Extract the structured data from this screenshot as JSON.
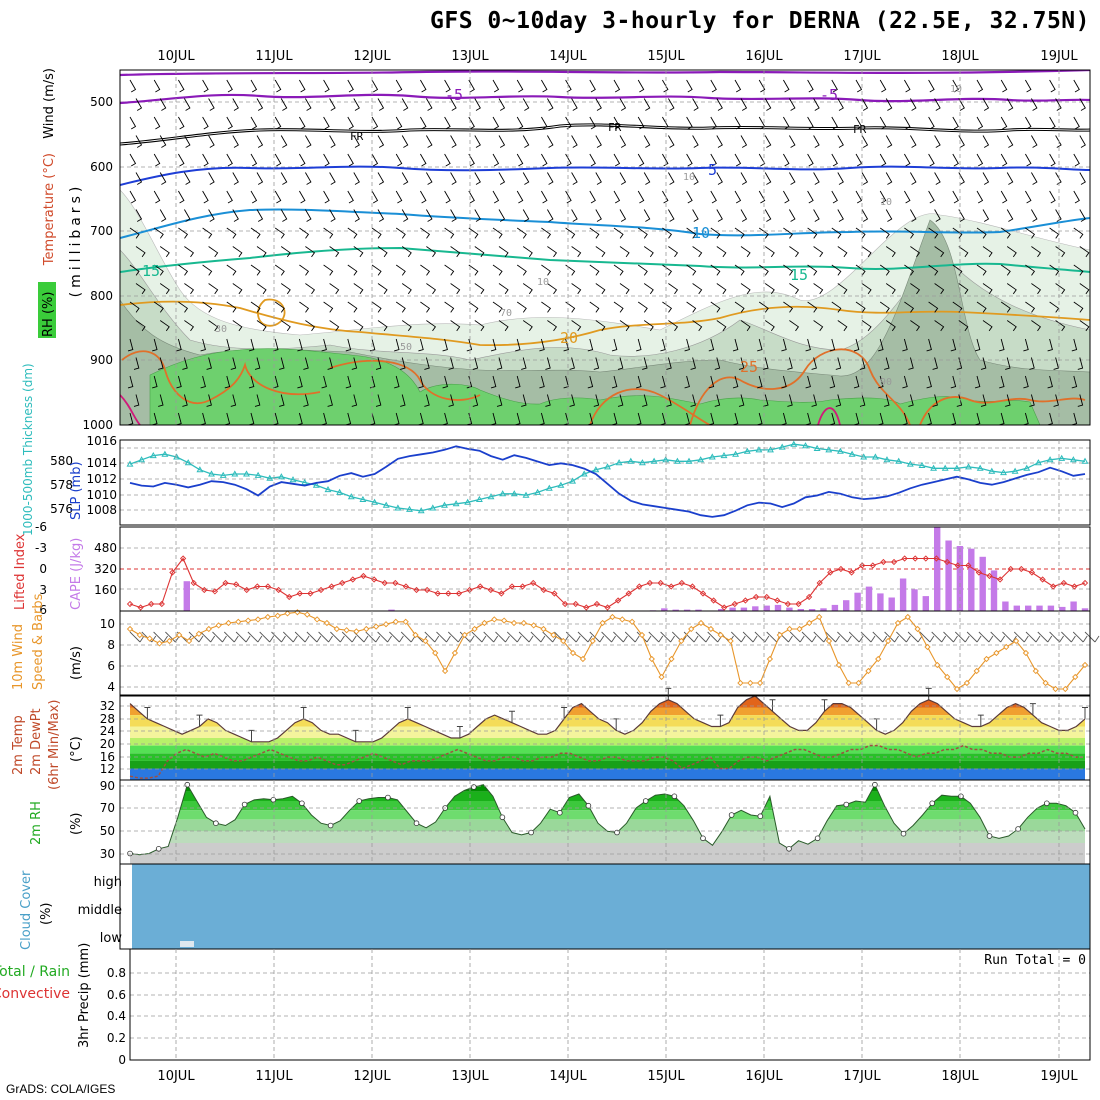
{
  "title": "GFS 0~10day 3-hourly for DERNA (22.5E, 32.75N)",
  "footer": "GrADS: COLA/IGES",
  "date_labels": [
    "10JUL",
    "11JUL",
    "12JUL",
    "13JUL",
    "14JUL",
    "15JUL",
    "16JUL",
    "17JUL",
    "18JUL",
    "19JUL"
  ],
  "colors": {
    "frame": "#000000",
    "grid": "#9a9a9a",
    "t_purple": "#8a1ab8",
    "t_black": "#000000",
    "t_blue": "#1e3ed6",
    "t_cyan": "#1a8fd6",
    "t_green": "#18b890",
    "t_orange": "#e09a20",
    "t_dorange": "#e0702a",
    "t_magenta": "#d01a7a",
    "rh_l1": "#e6f2e6",
    "rh_l2": "#c7dcc7",
    "rh_l3": "#a5bda5",
    "rh_high": "#6ed06e",
    "thick": "#2ebcbc",
    "slp": "#1a3fcc",
    "li": "#dd3333",
    "cape": "#c47ae8",
    "wind": "#e8962a",
    "cloud": "#6baed6",
    "temp_band": [
      "#e2641a",
      "#f0a030",
      "#f4dc58",
      "#f4f49c",
      "#b8f06a",
      "#55e055",
      "#28c028",
      "#18a018",
      "#2a78e0"
    ],
    "rh_band": [
      "#008f00",
      "#1ab01a",
      "#3cc83c",
      "#6edc6e",
      "#9ad89a",
      "#bcdcbc",
      "#cccccc"
    ]
  },
  "panels": {
    "upper": {
      "y_label": "(millibars)",
      "side_labels": [
        "Wind (m/s)",
        "Temperature (°C)",
        "RH (%)"
      ],
      "y_ticks": [
        "500",
        "600",
        "700",
        "800",
        "900",
        "1000"
      ],
      "contour_labels": {
        "m5_a": "-5",
        "m5_b": "-5",
        "fr_a": "FR",
        "fr_b": "FR",
        "fr_c": "FR",
        "p5": "5",
        "p10": "10",
        "p15_a": "15",
        "p15_b": "15",
        "p20": "20",
        "p25": "25",
        "rh10_a": "10",
        "rh10_b": "10",
        "rh10_c": "10",
        "rh10_d": "10",
        "rh30": "30",
        "rh50": "50",
        "rh70": "70",
        "rh90": "90"
      }
    },
    "thickness": {
      "left_label": "1000-500mb Thickness (dm)",
      "right_label": "SLP (mb)",
      "left_ticks": [
        "580",
        "578",
        "576"
      ],
      "right_ticks": [
        "1016",
        "1014",
        "1012",
        "1010",
        "1008"
      ]
    },
    "li_cape": {
      "left_label": "Lifted Index",
      "right_label": "CAPE (J/kg)",
      "left_ticks": [
        "-6",
        "-3",
        "0",
        "3",
        "6"
      ],
      "right_ticks": [
        "480",
        "320",
        "160"
      ]
    },
    "wind": {
      "left_label": "10m Wind",
      "mid_label": "Speed & Barbs",
      "unit": "(m/s)",
      "ticks": [
        "10",
        "8",
        "6",
        "4"
      ]
    },
    "temp": {
      "labels": [
        "2m Temp",
        "2m DewPt",
        "(6hr Min/Max)"
      ],
      "unit": "(°C)",
      "ticks": [
        "32",
        "28",
        "24",
        "20",
        "16",
        "12"
      ]
    },
    "rh": {
      "label": "2m RH",
      "unit": "(%)",
      "ticks": [
        "90",
        "70",
        "50",
        "30"
      ]
    },
    "cloud": {
      "label": "Cloud Cover",
      "unit": "(%)",
      "levels": [
        "high",
        "middle",
        "low"
      ]
    },
    "precip": {
      "label_total": "Total / Rain",
      "label_conv": "Convective",
      "unit": "3hr Precip (mm)",
      "ticks": [
        "0.8",
        "0.6",
        "0.4",
        "0.2",
        "0"
      ],
      "run_total": "Run Total = 0"
    }
  },
  "chart_data": [
    {
      "type": "line",
      "title": "1000-500mb Thickness / SLP",
      "x_step_hours": 3,
      "series": [
        {
          "name": "1000-500mb Thickness (dm)",
          "axis": "left",
          "ylim": [
            575,
            581
          ],
          "values": [
            579.3,
            579.6,
            579.9,
            580.0,
            579.8,
            579.4,
            578.9,
            578.6,
            578.5,
            578.6,
            578.6,
            578.5,
            578.3,
            578.4,
            578.2,
            578.0,
            577.8,
            577.5,
            577.3,
            577.0,
            576.8,
            576.6,
            576.4,
            576.2,
            576.1,
            576.0,
            576.2,
            576.4,
            576.5,
            576.6,
            576.8,
            577.0,
            577.2,
            577.2,
            577.1,
            577.3,
            577.6,
            577.8,
            578.1,
            578.6,
            578.9,
            579.1,
            579.4,
            579.5,
            579.4,
            579.5,
            579.6,
            579.5,
            579.5,
            579.6,
            579.8,
            579.9,
            580.0,
            580.2,
            580.3,
            580.3,
            580.5,
            580.7,
            580.6,
            580.4,
            580.3,
            580.2,
            580.0,
            579.8,
            579.8,
            579.6,
            579.5,
            579.3,
            579.2,
            579.0,
            579.0,
            579.0,
            579.1,
            579.0,
            578.8,
            578.7,
            578.8,
            579.0,
            579.4,
            579.6,
            579.7,
            579.6,
            579.5
          ]
        },
        {
          "name": "SLP (mb)",
          "axis": "right",
          "ylim": [
            1006.5,
            1016
          ],
          "values": [
            1011.2,
            1010.9,
            1010.8,
            1011.2,
            1011.0,
            1010.7,
            1011.0,
            1011.4,
            1011.3,
            1011.0,
            1010.5,
            1009.8,
            1010.8,
            1011.3,
            1011.1,
            1010.9,
            1011.2,
            1011.4,
            1012.0,
            1012.3,
            1011.9,
            1012.2,
            1013.0,
            1013.9,
            1014.2,
            1014.4,
            1014.6,
            1014.9,
            1015.3,
            1015.0,
            1014.8,
            1014.2,
            1013.8,
            1014.3,
            1014.0,
            1013.6,
            1013.2,
            1013.4,
            1013.2,
            1012.8,
            1012.2,
            1011.1,
            1010.0,
            1009.2,
            1008.8,
            1008.6,
            1008.4,
            1008.2,
            1008.0,
            1007.6,
            1007.4,
            1007.6,
            1008.1,
            1008.7,
            1009.0,
            1008.9,
            1008.5,
            1008.9,
            1009.6,
            1009.8,
            1010.2,
            1010.0,
            1009.6,
            1009.4,
            1009.5,
            1009.7,
            1010.1,
            1010.6,
            1011.0,
            1011.3,
            1011.6,
            1011.9,
            1011.6,
            1011.2,
            1011.0,
            1011.3,
            1011.7,
            1012.1,
            1012.4,
            1012.9,
            1012.5,
            1012.0,
            1012.2
          ]
        }
      ]
    },
    {
      "type": "bar",
      "title": "Lifted Index / CAPE",
      "series": [
        {
          "name": "CAPE (J/kg)",
          "axis": "right",
          "ylim": [
            0,
            620
          ],
          "values": [
            0,
            0,
            0,
            0,
            0,
            220,
            0,
            0,
            0,
            0,
            0,
            0,
            0,
            0,
            0,
            0,
            0,
            0,
            0,
            0,
            0,
            0,
            0,
            10,
            0,
            0,
            0,
            0,
            0,
            0,
            0,
            0,
            0,
            0,
            0,
            0,
            0,
            0,
            0,
            0,
            0,
            0,
            0,
            0,
            0,
            0,
            5,
            20,
            10,
            10,
            10,
            0,
            15,
            25,
            25,
            35,
            40,
            45,
            25,
            15,
            15,
            20,
            45,
            80,
            135,
            180,
            130,
            100,
            240,
            160,
            110,
            620,
            520,
            480,
            460,
            400,
            300,
            70,
            40,
            40,
            40,
            40,
            30,
            70,
            20
          ]
        },
        {
          "name": "Lifted Index",
          "axis": "left",
          "ylim": [
            6,
            -6
          ],
          "chart_type": "line",
          "values": [
            5.0,
            5.5,
            5.0,
            5.0,
            0.5,
            -1.5,
            2.0,
            3.0,
            3.2,
            2.0,
            2.2,
            3.0,
            2.5,
            2.5,
            3.0,
            4.0,
            3.5,
            3.5,
            3.0,
            2.5,
            2.0,
            1.5,
            1.0,
            1.5,
            2.0,
            2.0,
            2.5,
            3.0,
            3.0,
            3.5,
            3.5,
            3.5,
            3.0,
            2.5,
            3.0,
            3.5,
            2.5,
            2.5,
            2.0,
            3.0,
            3.5,
            5.0,
            5.0,
            5.5,
            5.0,
            5.5,
            4.5,
            3.5,
            2.5,
            2.0,
            2.0,
            2.5,
            2.0,
            2.5,
            3.5,
            4.5,
            5.5,
            5.0,
            4.5,
            4.0,
            4.0,
            4.5,
            5.0,
            5.0,
            4.0,
            2.0,
            0.5,
            0.0,
            0.5,
            -0.5,
            -0.5,
            -1.0,
            -1.0,
            -1.5,
            -1.5,
            -1.5,
            -1.5,
            -1.0,
            -0.5,
            -0.5,
            0.5,
            1.0,
            1.5,
            0.0,
            0.0,
            0.5,
            1.5,
            2.5,
            2.0,
            2.5,
            2.0
          ]
        }
      ]
    },
    {
      "type": "line",
      "title": "10m Wind Speed (m/s)",
      "ylim": [
        3.5,
        10.5
      ],
      "series": [
        {
          "name": "10m Wind Speed",
          "values": [
            9.0,
            8.5,
            8.2,
            7.8,
            8.0,
            8.5,
            8.0,
            8.6,
            9.0,
            9.3,
            9.5,
            9.6,
            9.7,
            9.8,
            10.0,
            10.1,
            10.3,
            10.4,
            10.2,
            9.8,
            9.5,
            9.0,
            8.9,
            8.8,
            9.0,
            9.2,
            9.4,
            9.6,
            9.6,
            8.5,
            8.0,
            7.0,
            5.5,
            7.0,
            8.5,
            9.0,
            9.5,
            9.8,
            9.7,
            9.5,
            9.5,
            9.3,
            9.0,
            8.5,
            8.0,
            7.0,
            6.5,
            8.0,
            9.5,
            10.0,
            9.8,
            9.6,
            8.5,
            6.5,
            5.0,
            6.5,
            8.0,
            9.0,
            9.5,
            9.0,
            8.5,
            8.0,
            4.5,
            4.5,
            4.5,
            6.5,
            8.5,
            9.0,
            9.0,
            9.5,
            10.0,
            8.0,
            6.0,
            4.5,
            4.5,
            5.5,
            6.5,
            8.0,
            9.5,
            10.0,
            9.0,
            7.5,
            6.0,
            5.0,
            4.0,
            4.5,
            5.5,
            6.5,
            7.0,
            7.5,
            8.0,
            7.0,
            5.5,
            4.5,
            4.0,
            4.0,
            5.0,
            6.0
          ]
        }
      ]
    },
    {
      "type": "area",
      "title": "2m Temp / 2m DewPt",
      "ylim": [
        11,
        33
      ],
      "series": [
        {
          "name": "2m Temp",
          "values": [
            31,
            29,
            27,
            26,
            25,
            24,
            23,
            24,
            25,
            27,
            26,
            24,
            23,
            22,
            21,
            21,
            21,
            22,
            24,
            26,
            27,
            26,
            24,
            23,
            23,
            22,
            21,
            21,
            21,
            22,
            24,
            26,
            27,
            26,
            25,
            24,
            23,
            22,
            22,
            23,
            25,
            27,
            28,
            27,
            26,
            25,
            24,
            23,
            23,
            24,
            27,
            30,
            31,
            29,
            27,
            26,
            24,
            23,
            24,
            26,
            29,
            31,
            32,
            31,
            29,
            27,
            26,
            25,
            25,
            26,
            30,
            32,
            33,
            31,
            29,
            27,
            25,
            24,
            24,
            26,
            29,
            31,
            31,
            30,
            28,
            26,
            24,
            23,
            24,
            26,
            29,
            31,
            32,
            31,
            29,
            27,
            26,
            25,
            25,
            26,
            28,
            30,
            31,
            30,
            28,
            26,
            25,
            24,
            24,
            25,
            27
          ]
        },
        {
          "name": "2m DewPt",
          "values": [
            12,
            11.5,
            11.5,
            12,
            16,
            18,
            19,
            18,
            17,
            18,
            17,
            16,
            16,
            17,
            18,
            19,
            18,
            17,
            16,
            16,
            17,
            16,
            15,
            15,
            16,
            17,
            18,
            17,
            16,
            15,
            16,
            16,
            16,
            17,
            18,
            19,
            18,
            17,
            16,
            16,
            17,
            17,
            16,
            16,
            17,
            17,
            18,
            18,
            17,
            16,
            16,
            17,
            17,
            16,
            16,
            16,
            17,
            17,
            16,
            14,
            15,
            16,
            17,
            14,
            14,
            16,
            17,
            17,
            16,
            17,
            18,
            19,
            19,
            18,
            17,
            17,
            18,
            19,
            19,
            20,
            20,
            19,
            19,
            18,
            17,
            18,
            18,
            19,
            19,
            20,
            19,
            19,
            18,
            18,
            17,
            17,
            18,
            18,
            19,
            18,
            18,
            17,
            17
          ]
        }
      ]
    },
    {
      "type": "area",
      "title": "2m RH (%)",
      "ylim": [
        20,
        92
      ],
      "series": [
        {
          "name": "2m RH",
          "values": [
            29,
            28,
            29,
            33,
            35,
            60,
            88,
            74,
            60,
            55,
            53,
            58,
            71,
            75,
            76,
            75,
            76,
            78,
            72,
            62,
            55,
            53,
            57,
            66,
            74,
            76,
            77,
            77,
            75,
            65,
            55,
            51,
            56,
            68,
            78,
            83,
            86,
            88,
            78,
            60,
            47,
            45,
            47,
            55,
            67,
            64,
            77,
            80,
            70,
            55,
            48,
            47,
            55,
            68,
            74,
            79,
            80,
            78,
            70,
            57,
            42,
            36,
            48,
            62,
            66,
            62,
            61,
            78,
            38,
            33,
            40,
            37,
            42,
            57,
            70,
            71,
            74,
            73,
            88,
            70,
            55,
            46,
            53,
            62,
            72,
            79,
            78,
            78,
            72,
            60,
            44,
            42,
            44,
            50,
            60,
            68,
            72,
            72,
            70,
            64,
            50
          ]
        }
      ]
    },
    {
      "type": "bar",
      "title": "3hr Precip (mm)",
      "ylim": [
        0,
        1
      ],
      "series": [
        {
          "name": "Total / Rain",
          "values": []
        },
        {
          "name": "Convective",
          "values": []
        }
      ]
    }
  ]
}
